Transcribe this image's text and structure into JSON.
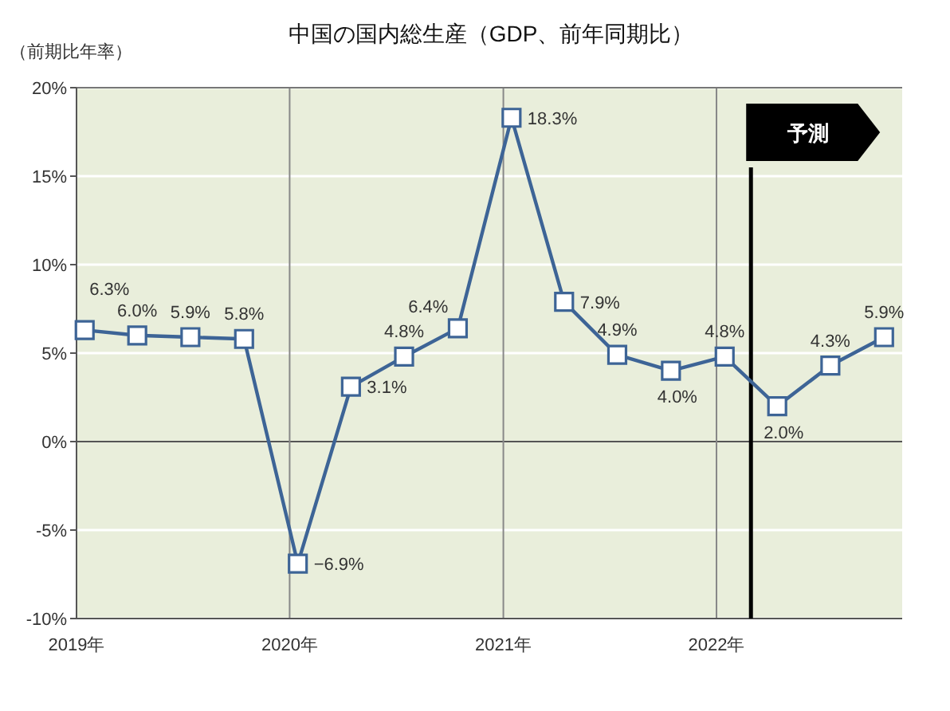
{
  "chart_data": {
    "type": "line",
    "title": "中国の国内総生産（GDP、前年同期比）",
    "ylabel": "（前期比年率）",
    "x": [
      "2019-01-15",
      "2019-04-15",
      "2019-07-15",
      "2019-10-15",
      "2020-01-15",
      "2020-04-15",
      "2020-07-15",
      "2020-10-15",
      "2021-01-15",
      "2021-04-15",
      "2021-07-15",
      "2021-10-15",
      "2022-01-15",
      "2022-04-15",
      "2022-07-15",
      "2022-10-15"
    ],
    "series": [
      {
        "color": "#3d6496",
        "values": [
          6.3,
          6.0,
          5.9,
          5.8,
          -6.9,
          3.1,
          4.8,
          6.4,
          18.3,
          7.9,
          4.9,
          4.0,
          4.8,
          2.0,
          4.3,
          5.9
        ],
        "value_labels": [
          "6.3%",
          "6.0%",
          "5.9%",
          "5.8%",
          "−6.9%",
          "3.1%",
          "4.8%",
          "6.4%",
          "18.3%",
          "7.9%",
          "4.9%",
          "4.0%",
          "4.8%",
          "2.0%",
          "4.3%",
          "5.9%"
        ]
      }
    ],
    "xlim": [
      "2019-01-01",
      "2022-11-15"
    ],
    "xticks": [
      {
        "value": "2019-01-01",
        "label": "2019年"
      },
      {
        "value": "2020-01-01",
        "label": "2020年"
      },
      {
        "value": "2021-01-01",
        "label": "2021年"
      },
      {
        "value": "2022-01-01",
        "label": "2022年"
      }
    ],
    "ylim": [
      -10,
      20
    ],
    "yticks": [
      {
        "value": -10,
        "label": "-10%"
      },
      {
        "value": -5,
        "label": "-5%"
      },
      {
        "value": 0,
        "label": "0%"
      },
      {
        "value": 5,
        "label": "5%"
      },
      {
        "value": 10,
        "label": "10%"
      },
      {
        "value": 15,
        "label": "15%"
      },
      {
        "value": 20,
        "label": "20%"
      }
    ],
    "ref_lines": [
      {
        "axis": "x",
        "value": "2022-03-01",
        "label": "予測",
        "color": "#000000"
      }
    ],
    "grid": true,
    "marker": "square",
    "line_style": "solid"
  }
}
